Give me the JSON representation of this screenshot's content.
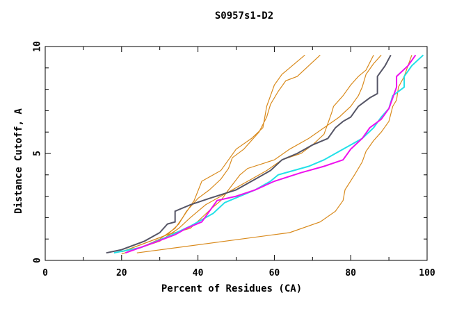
{
  "chart_data": {
    "type": "line",
    "title": "S0957s1-D2",
    "xlabel": "Percent of Residues (CA)",
    "ylabel": "Distance Cutoff, A",
    "xlim": [
      0,
      100
    ],
    "ylim": [
      0,
      10
    ],
    "x_ticks": [
      0,
      20,
      40,
      60,
      80,
      100
    ],
    "y_ticks": [
      0,
      5,
      10
    ],
    "x_minor_step": 10,
    "y_minor_step": 1,
    "grid": false,
    "legend": "none",
    "series": [
      {
        "name": "orange-1",
        "color": "#d98a1c",
        "points": [
          [
            20,
            0.4
          ],
          [
            25,
            0.6
          ],
          [
            30,
            1.0
          ],
          [
            34,
            1.5
          ],
          [
            36,
            2.0
          ],
          [
            39,
            2.8
          ],
          [
            41,
            3.7
          ],
          [
            46,
            4.2
          ],
          [
            48,
            4.7
          ],
          [
            50,
            5.2
          ],
          [
            54,
            5.7
          ],
          [
            57,
            6.2
          ],
          [
            57.5,
            6.7
          ],
          [
            58,
            7.2
          ],
          [
            59,
            7.7
          ],
          [
            60,
            8.2
          ],
          [
            62,
            8.7
          ],
          [
            64,
            9.0
          ],
          [
            66,
            9.3
          ],
          [
            68,
            9.6
          ]
        ]
      },
      {
        "name": "orange-2",
        "color": "#d98a1c",
        "points": [
          [
            20,
            0.4
          ],
          [
            26,
            0.8
          ],
          [
            32,
            1.2
          ],
          [
            35,
            1.7
          ],
          [
            37,
            2.3
          ],
          [
            40,
            2.9
          ],
          [
            43,
            3.3
          ],
          [
            46,
            3.8
          ],
          [
            48,
            4.3
          ],
          [
            49,
            4.8
          ],
          [
            52,
            5.2
          ],
          [
            56,
            6.0
          ],
          [
            58,
            6.7
          ],
          [
            59,
            7.3
          ],
          [
            61,
            7.9
          ],
          [
            63,
            8.4
          ],
          [
            66,
            8.6
          ],
          [
            69,
            9.1
          ],
          [
            72,
            9.6
          ]
        ]
      },
      {
        "name": "orange-3",
        "color": "#d98a1c",
        "points": [
          [
            20,
            0.4
          ],
          [
            26,
            0.8
          ],
          [
            32,
            1.2
          ],
          [
            38,
            1.5
          ],
          [
            41,
            2.0
          ],
          [
            44,
            2.5
          ],
          [
            46,
            2.8
          ],
          [
            48,
            3.3
          ],
          [
            51,
            4.0
          ],
          [
            53,
            4.3
          ],
          [
            60,
            4.7
          ],
          [
            64,
            5.2
          ],
          [
            69,
            5.7
          ],
          [
            73,
            6.2
          ],
          [
            77,
            6.7
          ],
          [
            80,
            7.2
          ],
          [
            82,
            7.7
          ],
          [
            83,
            8.1
          ],
          [
            84,
            8.7
          ],
          [
            86,
            9.2
          ],
          [
            88,
            9.6
          ]
        ]
      },
      {
        "name": "orange-4",
        "color": "#d98a1c",
        "points": [
          [
            20,
            0.3
          ],
          [
            30,
            0.9
          ],
          [
            35,
            1.5
          ],
          [
            38,
            2.0
          ],
          [
            42,
            2.6
          ],
          [
            46,
            3.0
          ],
          [
            50,
            3.4
          ],
          [
            54,
            3.8
          ],
          [
            58,
            4.2
          ],
          [
            62,
            4.7
          ],
          [
            67,
            5.0
          ],
          [
            70,
            5.4
          ],
          [
            73,
            5.9
          ],
          [
            74,
            6.4
          ],
          [
            75,
            6.9
          ],
          [
            75.5,
            7.2
          ],
          [
            78,
            7.7
          ],
          [
            80,
            8.2
          ],
          [
            82,
            8.6
          ],
          [
            84,
            8.9
          ],
          [
            86,
            9.6
          ]
        ]
      },
      {
        "name": "orange-5",
        "color": "#d98a1c",
        "points": [
          [
            24,
            0.35
          ],
          [
            64,
            1.3
          ],
          [
            72,
            1.8
          ],
          [
            76,
            2.3
          ],
          [
            78,
            2.8
          ],
          [
            78.5,
            3.3
          ],
          [
            81,
            4.0
          ],
          [
            83,
            4.6
          ],
          [
            84,
            5.1
          ],
          [
            86,
            5.6
          ],
          [
            88,
            6.0
          ],
          [
            90,
            6.5
          ],
          [
            91,
            7.2
          ],
          [
            92,
            7.5
          ],
          [
            92.5,
            8.1
          ],
          [
            94,
            8.6
          ],
          [
            95,
            9.1
          ],
          [
            96,
            9.6
          ]
        ]
      },
      {
        "name": "dark-gray",
        "color": "#555566",
        "points": [
          [
            16,
            0.35
          ],
          [
            20,
            0.5
          ],
          [
            26,
            0.9
          ],
          [
            30,
            1.3
          ],
          [
            32,
            1.7
          ],
          [
            34,
            1.8
          ],
          [
            34,
            2.3
          ],
          [
            38,
            2.6
          ],
          [
            43,
            2.9
          ],
          [
            50,
            3.3
          ],
          [
            55,
            3.8
          ],
          [
            59,
            4.2
          ],
          [
            62,
            4.7
          ],
          [
            66,
            5.0
          ],
          [
            70,
            5.4
          ],
          [
            74,
            5.7
          ],
          [
            76,
            6.2
          ],
          [
            78,
            6.5
          ],
          [
            80,
            6.7
          ],
          [
            82,
            7.2
          ],
          [
            85,
            7.6
          ],
          [
            87,
            7.8
          ],
          [
            87,
            8.6
          ],
          [
            89,
            9.1
          ],
          [
            90.5,
            9.6
          ]
        ]
      },
      {
        "name": "cyan",
        "color": "#22e0e8",
        "points": [
          [
            18,
            0.35
          ],
          [
            25,
            0.6
          ],
          [
            32,
            1.1
          ],
          [
            38,
            1.6
          ],
          [
            41,
            1.9
          ],
          [
            44,
            2.2
          ],
          [
            47,
            2.7
          ],
          [
            51,
            3.0
          ],
          [
            55,
            3.3
          ],
          [
            59,
            3.7
          ],
          [
            61,
            4.0
          ],
          [
            65,
            4.2
          ],
          [
            69,
            4.4
          ],
          [
            73,
            4.7
          ],
          [
            76,
            5.0
          ],
          [
            79,
            5.3
          ],
          [
            83,
            5.7
          ],
          [
            86,
            6.2
          ],
          [
            88,
            6.7
          ],
          [
            90,
            7.1
          ],
          [
            91,
            7.7
          ],
          [
            94,
            8.1
          ],
          [
            94,
            8.6
          ],
          [
            96,
            9.1
          ],
          [
            99,
            9.6
          ]
        ]
      },
      {
        "name": "magenta",
        "color": "#ee11ee",
        "points": [
          [
            21,
            0.35
          ],
          [
            28,
            0.8
          ],
          [
            34,
            1.2
          ],
          [
            37,
            1.5
          ],
          [
            41,
            1.8
          ],
          [
            45,
            2.8
          ],
          [
            50,
            3.0
          ],
          [
            55,
            3.3
          ],
          [
            60,
            3.7
          ],
          [
            67,
            4.1
          ],
          [
            73,
            4.4
          ],
          [
            78,
            4.7
          ],
          [
            80,
            5.2
          ],
          [
            83,
            5.7
          ],
          [
            85,
            6.2
          ],
          [
            88,
            6.6
          ],
          [
            90,
            7.1
          ],
          [
            91,
            7.6
          ],
          [
            92,
            8.1
          ],
          [
            92,
            8.6
          ],
          [
            95,
            9.1
          ],
          [
            97,
            9.6
          ]
        ]
      }
    ]
  }
}
